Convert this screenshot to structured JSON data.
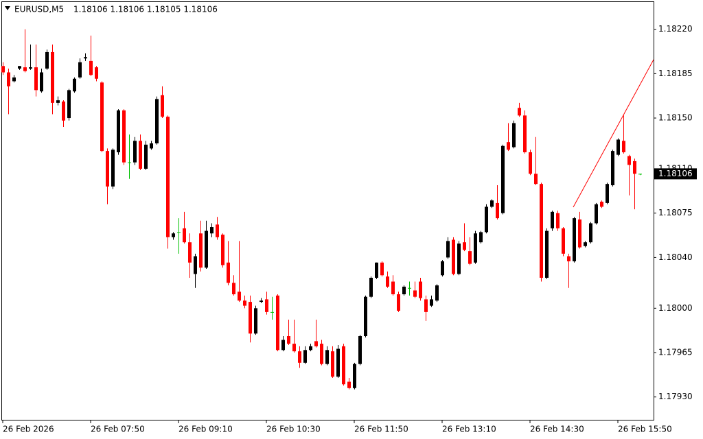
{
  "chart_data": {
    "type": "candlestick",
    "title": "EURUSD,M5",
    "ohlc_info": "1.18106 1.18106 1.18105 1.18106",
    "last_price": 1.18106,
    "up_color": "#000000",
    "down_color": "#ff0000",
    "doji_color": "#00c000",
    "ylim": [
      1.17912,
      1.18242
    ],
    "yticks": [
      {
        "value": 1.1822,
        "label": "1.18220"
      },
      1.18185,
      {
        "value": 1.1815,
        "label": "1.18150"
      },
      {
        "value": 1.1811,
        "label": "1.18110"
      },
      1.18075,
      {
        "value": 1.1804,
        "label": "1.18040"
      },
      {
        "value": 1.18,
        "label": "1.18000"
      },
      1.17965,
      {
        "value": 1.1793,
        "label": "1.17930"
      }
    ],
    "categories": [
      "26 Feb 2026",
      null,
      null,
      null,
      null,
      null,
      null,
      null,
      null,
      null,
      null,
      null,
      null,
      null,
      null,
      null,
      "26 Feb 07:50",
      null,
      null,
      null,
      null,
      null,
      null,
      null,
      null,
      null,
      null,
      null,
      null,
      null,
      null,
      null,
      "26 Feb 09:10",
      null,
      null,
      null,
      null,
      null,
      null,
      null,
      null,
      null,
      null,
      null,
      null,
      null,
      null,
      null,
      "26 Feb 10:30",
      null,
      null,
      null,
      null,
      null,
      null,
      null,
      null,
      null,
      null,
      null,
      null,
      null,
      null,
      null,
      "26 Feb 11:50",
      null,
      null,
      null,
      null,
      null,
      null,
      null,
      null,
      null,
      null,
      null,
      null,
      null,
      null,
      null,
      "26 Feb 13:10",
      null,
      null,
      null,
      null,
      null,
      null,
      null,
      null,
      null,
      null,
      null,
      null,
      null,
      null,
      null,
      "26 Feb 14:30",
      null,
      null,
      null,
      null,
      null,
      null,
      null,
      null,
      null,
      null,
      null,
      null,
      null,
      null,
      null,
      "26 Feb 15:50",
      null,
      null,
      null,
      null
    ],
    "open": [
      1.18191,
      1.18186,
      1.18179,
      1.18189,
      1.1819,
      1.18189,
      1.1819,
      1.18171,
      1.18189,
      1.18202,
      1.18162,
      1.18163,
      1.1815,
      1.18171,
      1.18182,
      1.18197,
      1.18195,
      1.1819,
      1.18178,
      1.18124,
      1.18096,
      1.18123,
      1.18156,
      1.18115,
      1.18115,
      1.18132,
      1.1811,
      1.18126,
      1.1813,
      1.18168,
      1.18151,
      1.18056,
      1.1806,
      1.18063,
      1.18052,
      1.18027,
      1.18059,
      1.18032,
      1.18059,
      1.18066,
      1.18058,
      1.18036,
      1.1802,
      1.18013,
      1.18006,
      1.18005,
      1.1798,
      1.18005,
      1.18007,
      1.17997,
      1.1801,
      1.17967,
      1.17978,
      1.17972,
      1.17966,
      1.17957,
      1.17967,
      1.17974,
      1.17972,
      1.17956,
      1.17966,
      1.17946,
      1.1797,
      1.17942,
      1.17937,
      1.17956,
      1.17978,
      1.18009,
      1.18024,
      1.18036,
      1.18025,
      1.18021,
      1.18011,
      1.18011,
      1.18016,
      1.18014,
      1.18021,
      1.18007,
      1.18002,
      1.18006,
      1.18026,
      1.1804,
      1.18054,
      1.18027,
      1.18052,
      1.18045,
      1.18036,
      1.18052,
      1.1806,
      1.1808,
      1.18083,
      1.18075,
      1.18131,
      1.18127,
      1.18158,
      1.18152,
      1.18123,
      1.18106,
      1.18098,
      1.18024,
      1.18063,
      1.18075,
      1.18063,
      1.18041,
      1.18037,
      1.1807,
      1.18049,
      1.18052,
      1.18067,
      1.18084,
      1.18083,
      1.18097,
      1.18121,
      1.18132,
      1.1812,
      1.18116,
      1.18106
    ],
    "high": [
      1.18194,
      1.18189,
      1.18184,
      1.18191,
      1.1822,
      1.18208,
      1.18208,
      1.18189,
      1.18204,
      1.18208,
      1.18167,
      1.18164,
      1.18173,
      1.18182,
      1.18197,
      1.18201,
      1.18215,
      1.18191,
      1.18179,
      1.18126,
      1.18126,
      1.18157,
      1.18157,
      1.18137,
      1.18135,
      1.18137,
      1.18132,
      1.18132,
      1.18167,
      1.18175,
      1.18152,
      1.1806,
      1.18071,
      1.18076,
      1.18059,
      1.18043,
      1.18069,
      1.18069,
      1.18067,
      1.18072,
      1.18059,
      1.18053,
      1.18026,
      1.18053,
      1.1801,
      1.1801,
      1.18002,
      1.18008,
      1.18013,
      1.18009,
      1.18011,
      1.17978,
      1.17991,
      1.17991,
      1.1797,
      1.1797,
      1.17972,
      1.17991,
      1.17975,
      1.1797,
      1.1797,
      1.17971,
      1.17972,
      1.17945,
      1.17957,
      1.17979,
      1.1801,
      1.18025,
      1.18036,
      1.18037,
      1.18029,
      1.18026,
      1.18013,
      1.18018,
      1.18021,
      1.18021,
      1.18024,
      1.1801,
      1.1801,
      1.18019,
      1.18038,
      1.18056,
      1.18056,
      1.18053,
      1.18067,
      1.18056,
      1.18061,
      1.18061,
      1.18082,
      1.18086,
      1.18097,
      1.18129,
      1.18146,
      1.18148,
      1.18162,
      1.18156,
      1.18125,
      1.18135,
      1.18099,
      1.18063,
      1.18077,
      1.18077,
      1.18064,
      1.18043,
      1.18072,
      1.18076,
      1.18053,
      1.18068,
      1.18083,
      1.18085,
      1.18099,
      1.18125,
      1.18134,
      1.18152,
      1.18121,
      1.18118,
      1.18106
    ],
    "low": [
      1.18184,
      1.18153,
      1.18178,
      1.18188,
      1.18186,
      1.18188,
      1.18167,
      1.1817,
      1.18188,
      1.18153,
      1.1816,
      1.18143,
      1.18148,
      1.1817,
      1.18181,
      1.18195,
      1.18183,
      1.18179,
      1.18123,
      1.18082,
      1.18094,
      1.18121,
      1.18113,
      1.18102,
      1.18113,
      1.18109,
      1.18109,
      1.18125,
      1.18129,
      1.1815,
      1.18047,
      1.18054,
      1.18043,
      1.18051,
      1.18024,
      1.18016,
      1.18029,
      1.18031,
      1.18056,
      1.18054,
      1.18032,
      1.18018,
      1.1801,
      1.18005,
      1.18,
      1.17973,
      1.17979,
      1.18004,
      1.17995,
      1.17991,
      1.17966,
      1.17966,
      1.17971,
      1.17965,
      1.17953,
      1.17956,
      1.17966,
      1.17969,
      1.17955,
      1.17955,
      1.17945,
      1.17945,
      1.17939,
      1.17936,
      1.17936,
      1.17955,
      1.17977,
      1.18008,
      1.18023,
      1.18025,
      1.18016,
      1.1801,
      1.17997,
      1.1801,
      1.1801,
      1.18008,
      1.18006,
      1.1799,
      1.18001,
      1.18005,
      1.18025,
      1.18039,
      1.18026,
      1.18026,
      1.18045,
      1.18034,
      1.18035,
      1.18051,
      1.18059,
      1.18079,
      1.1807,
      1.18074,
      1.18124,
      1.18126,
      1.18151,
      1.18122,
      1.18105,
      1.18097,
      1.18021,
      1.18023,
      1.18061,
      1.18061,
      1.18041,
      1.18016,
      1.18036,
      1.18047,
      1.18048,
      1.18051,
      1.18066,
      1.18079,
      1.18082,
      1.18096,
      1.1812,
      1.18122,
      1.18089,
      1.18078,
      1.18105
    ],
    "close": [
      1.18186,
      1.18175,
      1.18182,
      1.18191,
      1.18187,
      1.1819,
      1.18172,
      1.18186,
      1.18202,
      1.18162,
      1.18164,
      1.18148,
      1.18172,
      1.18181,
      1.18194,
      1.18198,
      1.18184,
      1.18181,
      1.18124,
      1.18096,
      1.18125,
      1.18156,
      1.18115,
      1.18115,
      1.18132,
      1.1811,
      1.18129,
      1.1813,
      1.18165,
      1.18151,
      1.18056,
      1.18059,
      1.1806,
      1.18052,
      1.18036,
      1.18041,
      1.18032,
      1.18061,
      1.18064,
      1.18056,
      1.18034,
      1.1802,
      1.18011,
      1.18006,
      1.18002,
      1.1798,
      1.18,
      1.18006,
      1.17997,
      1.17997,
      1.17967,
      1.17975,
      1.17972,
      1.17966,
      1.17957,
      1.17967,
      1.1797,
      1.1797,
      1.17956,
      1.17967,
      1.17946,
      1.17968,
      1.1794,
      1.17937,
      1.17956,
      1.17978,
      1.18009,
      1.18024,
      1.18036,
      1.18026,
      1.18017,
      1.18011,
      1.17998,
      1.18017,
      1.18016,
      1.18009,
      1.18008,
      1.17997,
      1.18007,
      1.18018,
      1.18037,
      1.18053,
      1.18027,
      1.18051,
      1.18046,
      1.18035,
      1.18059,
      1.1806,
      1.1808,
      1.18085,
      1.18071,
      1.18128,
      1.18125,
      1.18146,
      1.18152,
      1.18123,
      1.18106,
      1.18098,
      1.18024,
      1.18061,
      1.18076,
      1.18063,
      1.18043,
      1.18037,
      1.18071,
      1.18048,
      1.18052,
      1.18067,
      1.18082,
      1.1808,
      1.18098,
      1.18124,
      1.18133,
      1.18123,
      1.18113,
      1.18106,
      1.18106
    ]
  }
}
